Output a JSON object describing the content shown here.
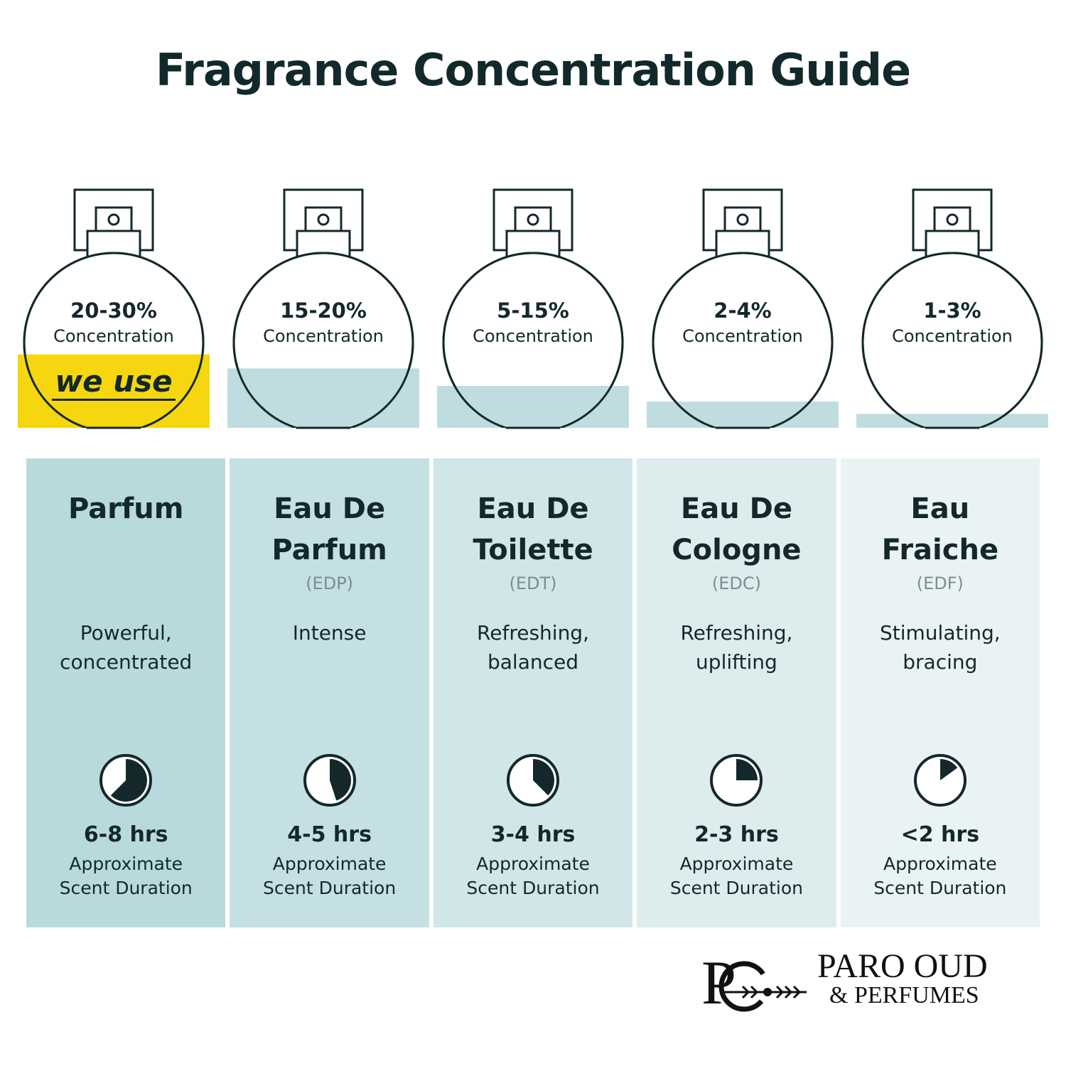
{
  "title": "Fragrance Concentration Guide",
  "concentration_label": "Concentration",
  "duration_label": "Approximate Scent Duration",
  "highlight": {
    "label": "we use",
    "color": "#f5d60f"
  },
  "liquid_color": "#bfdde1",
  "items": [
    {
      "name": "Parfum",
      "abbr": "",
      "concentration": "20-30%",
      "description": "Powerful, concentrated",
      "duration": "6-8 hrs",
      "liquid_level": 0.42,
      "clock_fill": 0.625,
      "highlighted": true,
      "bg": "#b9dadd"
    },
    {
      "name": "Eau De Parfum",
      "abbr": "(EDP)",
      "concentration": "15-20%",
      "description": "Intense",
      "duration": "4-5 hrs",
      "liquid_level": 0.34,
      "clock_fill": 0.45,
      "highlighted": false,
      "bg": "#c4e0e3"
    },
    {
      "name": "Eau De Toilette",
      "abbr": "(EDT)",
      "concentration": "5-15%",
      "description": "Refreshing, balanced",
      "duration": "3-4 hrs",
      "liquid_level": 0.24,
      "clock_fill": 0.375,
      "highlighted": false,
      "bg": "#d0e6e8"
    },
    {
      "name": "Eau De Cologne",
      "abbr": "(EDC)",
      "concentration": "2-4%",
      "description": "Refreshing, uplifting",
      "duration": "2-3 hrs",
      "liquid_level": 0.15,
      "clock_fill": 0.25,
      "highlighted": false,
      "bg": "#ddedee"
    },
    {
      "name": "Eau Fraiche",
      "abbr": "(EDF)",
      "concentration": "1-3%",
      "description": "Stimulating, bracing",
      "duration": "<2 hrs",
      "liquid_level": 0.08,
      "clock_fill": 0.15,
      "highlighted": false,
      "bg": "#eaf3f4"
    }
  ],
  "logo": {
    "monogram": "PO",
    "line1": "PARO OUD",
    "line2": "& PERFUMES"
  }
}
